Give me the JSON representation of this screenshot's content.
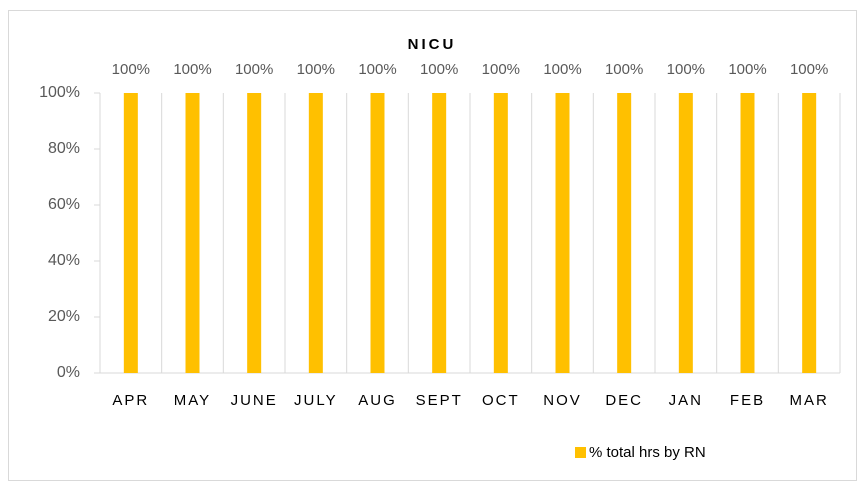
{
  "chart_data": {
    "type": "bar",
    "title": "NICU",
    "categories": [
      "APR",
      "MAY",
      "JUNE",
      "JULY",
      "AUG",
      "SEPT",
      "OCT",
      "NOV",
      "DEC",
      "JAN",
      "FEB",
      "MAR"
    ],
    "series": [
      {
        "name": "% total hrs by RN",
        "color": "#FFC000",
        "values": [
          100,
          100,
          100,
          100,
          100,
          100,
          100,
          100,
          100,
          100,
          100,
          100
        ],
        "value_labels": [
          "100%",
          "100%",
          "100%",
          "100%",
          "100%",
          "100%",
          "100%",
          "100%",
          "100%",
          "100%",
          "100%",
          "100%"
        ]
      }
    ],
    "ylim": [
      0,
      100
    ],
    "yticks": [
      {
        "value": 0,
        "label": "0%"
      },
      {
        "value": 20,
        "label": "20%"
      },
      {
        "value": 40,
        "label": "40%"
      },
      {
        "value": 60,
        "label": "60%"
      },
      {
        "value": 80,
        "label": "80%"
      },
      {
        "value": 100,
        "label": "100%"
      }
    ],
    "grid": true,
    "legend": "bottom"
  }
}
